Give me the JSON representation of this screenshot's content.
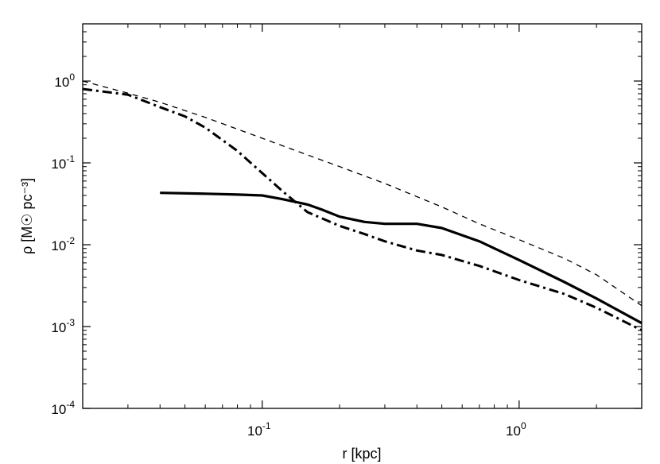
{
  "chart_data": {
    "type": "line",
    "xscale": "log",
    "yscale": "log",
    "xlim": [
      0.02,
      3.0
    ],
    "ylim": [
      0.0001,
      5.0
    ],
    "xlabel": "r [kpc]",
    "ylabel": "ρ [M☉ pc⁻³]",
    "xticks": [
      {
        "value": 0.1,
        "base": "10",
        "exp": "-1"
      },
      {
        "value": 1.0,
        "base": "10",
        "exp": "0"
      }
    ],
    "yticks": [
      {
        "value": 0.0001,
        "base": "10",
        "exp": "-4"
      },
      {
        "value": 0.001,
        "base": "10",
        "exp": "-3"
      },
      {
        "value": 0.01,
        "base": "10",
        "exp": "-2"
      },
      {
        "value": 0.1,
        "base": "10",
        "exp": "-1"
      },
      {
        "value": 1.0,
        "base": "10",
        "exp": "0"
      }
    ],
    "grid": false,
    "legend": false,
    "series": [
      {
        "style": "dashed",
        "x": [
          0.02,
          0.03,
          0.04,
          0.06,
          0.1,
          0.15,
          0.2,
          0.3,
          0.5,
          0.7,
          1.0,
          1.5,
          2.0,
          3.0
        ],
        "y": [
          1.0,
          0.71,
          0.55,
          0.36,
          0.2,
          0.125,
          0.09,
          0.056,
          0.029,
          0.018,
          0.0115,
          0.0068,
          0.0043,
          0.0018
        ]
      },
      {
        "style": "dashdot",
        "x": [
          0.02,
          0.03,
          0.04,
          0.05,
          0.06,
          0.08,
          0.1,
          0.12,
          0.15,
          0.2,
          0.25,
          0.3,
          0.4,
          0.5,
          0.7,
          1.0,
          1.5,
          2.0,
          3.0
        ],
        "y": [
          0.8,
          0.68,
          0.48,
          0.37,
          0.27,
          0.14,
          0.075,
          0.045,
          0.025,
          0.017,
          0.0135,
          0.011,
          0.0085,
          0.0075,
          0.0055,
          0.0037,
          0.0025,
          0.0017,
          0.0009
        ]
      },
      {
        "style": "solid",
        "x": [
          0.04,
          0.06,
          0.08,
          0.1,
          0.12,
          0.15,
          0.17,
          0.2,
          0.25,
          0.3,
          0.4,
          0.5,
          0.7,
          1.0,
          1.5,
          2.0,
          3.0
        ],
        "y": [
          0.043,
          0.042,
          0.041,
          0.04,
          0.036,
          0.031,
          0.027,
          0.022,
          0.019,
          0.018,
          0.018,
          0.016,
          0.011,
          0.0065,
          0.0035,
          0.0022,
          0.0011
        ]
      }
    ],
    "colors": {
      "line": "#000000",
      "axis": "#000000",
      "background": "#ffffff"
    }
  }
}
